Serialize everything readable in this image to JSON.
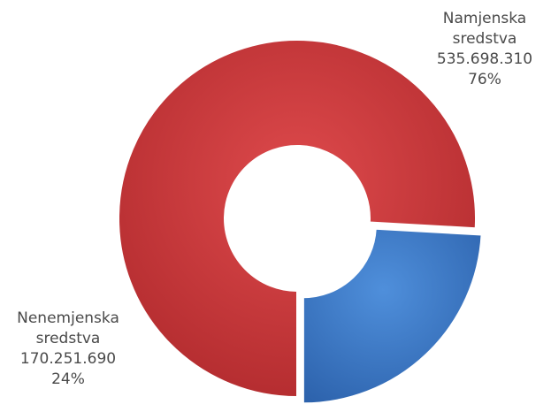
{
  "chart_data": {
    "type": "pie",
    "donut": true,
    "slices": [
      {
        "label_line1": "Namjenska",
        "label_line2": "sredstva",
        "value": 535698310,
        "value_text": "535.698.310",
        "percent": 76,
        "percent_text": "76%",
        "color": "#c9373a",
        "exploded": false
      },
      {
        "label_line1": "Nenemjenska",
        "label_line2": "sredstva",
        "value": 170251690,
        "value_text": "170.251.690",
        "percent": 24,
        "percent_text": "24%",
        "color": "#3a78c8",
        "exploded": true
      }
    ],
    "legend": "none",
    "title": ""
  }
}
